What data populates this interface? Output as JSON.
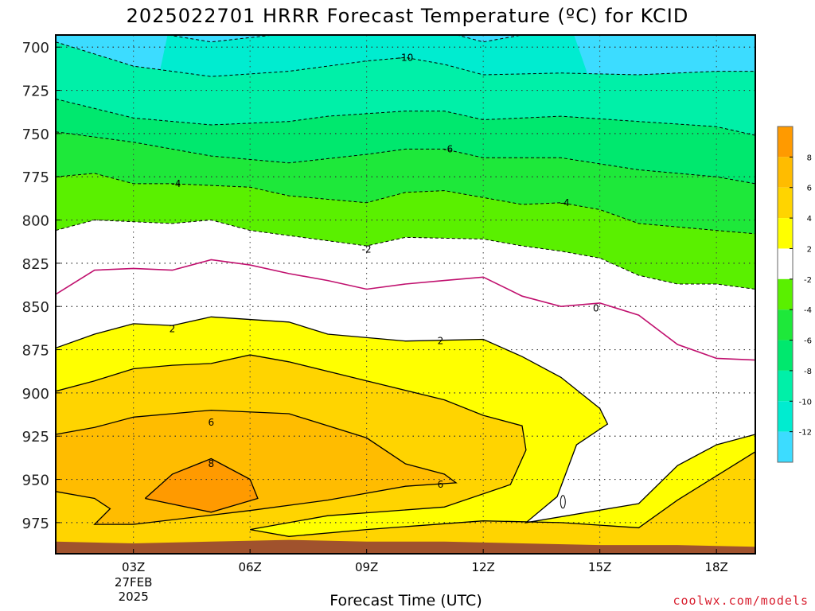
{
  "title": "2025022701 HRRR Forecast Temperature (ºC) for KCID",
  "xlabel": "Forecast Time (UTC)",
  "credit": "coolwx.com/models",
  "chart_data": {
    "type": "contour",
    "title": "2025022701 HRRR Forecast Temperature (ºC) for KCID",
    "xlabel": "Forecast Time (UTC)",
    "ylabel": "",
    "x_ticks": [
      "03Z",
      "06Z",
      "09Z",
      "12Z",
      "15Z",
      "18Z"
    ],
    "x_tick_sublabels": [
      "27FEB",
      "2025"
    ],
    "xlim": [
      1,
      19
    ],
    "y_ticks": [
      700,
      725,
      750,
      775,
      800,
      825,
      850,
      875,
      900,
      925,
      950,
      975
    ],
    "ylim": [
      993,
      693
    ],
    "y_inverted": true,
    "grid": true,
    "colorbar_labels": [
      -12,
      -10,
      -8,
      -6,
      -4,
      -2,
      2,
      4,
      6,
      8
    ],
    "colorbar_colors": [
      "#3cdcff",
      "#00ecd0",
      "#00f0a8",
      "#00e86e",
      "#1ee83a",
      "#5af000",
      "#ffffff",
      "#ffff00",
      "#ffd400",
      "#ffbc00",
      "#ff9a00"
    ],
    "contour_labels": [
      {
        "text": "-10",
        "x": 10.0,
        "y": 706
      },
      {
        "text": "-6",
        "x": 11.1,
        "y": 759
      },
      {
        "text": "-4",
        "x": 4.1,
        "y": 779
      },
      {
        "text": "-4",
        "x": 14.1,
        "y": 790
      },
      {
        "text": "-2",
        "x": 9.0,
        "y": 817
      },
      {
        "text": "0",
        "x": 14.9,
        "y": 851
      },
      {
        "text": "2",
        "x": 4.0,
        "y": 863
      },
      {
        "text": "2",
        "x": 10.9,
        "y": 870
      },
      {
        "text": "6",
        "x": 5.0,
        "y": 917
      },
      {
        "text": "8",
        "x": 5.0,
        "y": 941
      },
      {
        "text": "6",
        "x": 10.9,
        "y": 953
      }
    ],
    "isotherm_profiles": [
      {
        "value": -12,
        "points": [
          [
            3.9,
            693
          ],
          [
            5.0,
            697
          ],
          [
            7.0,
            692
          ],
          [
            9.0,
            691
          ],
          [
            11.0,
            691
          ],
          [
            12.0,
            697
          ],
          [
            13.0,
            693
          ],
          [
            14.3,
            693
          ]
        ]
      },
      {
        "value": -10,
        "points": [
          [
            1.0,
            697
          ],
          [
            3.0,
            711
          ],
          [
            5.0,
            717
          ],
          [
            7.0,
            714
          ],
          [
            9.0,
            708
          ],
          [
            10.0,
            706
          ],
          [
            11.0,
            710
          ],
          [
            12.0,
            716
          ],
          [
            14.0,
            715
          ],
          [
            16.0,
            716
          ],
          [
            18.0,
            714
          ],
          [
            19.0,
            714
          ]
        ]
      },
      {
        "value": -8,
        "points": [
          [
            1.0,
            730
          ],
          [
            3.0,
            741
          ],
          [
            5.0,
            745
          ],
          [
            7.0,
            743
          ],
          [
            8.0,
            740
          ],
          [
            10.0,
            737
          ],
          [
            11.0,
            737
          ],
          [
            12.0,
            742
          ],
          [
            14.0,
            740
          ],
          [
            16.0,
            743
          ],
          [
            18.0,
            746
          ],
          [
            19.0,
            751
          ]
        ]
      },
      {
        "value": -6,
        "points": [
          [
            1.0,
            749
          ],
          [
            3.0,
            755
          ],
          [
            5.0,
            763
          ],
          [
            7.0,
            767
          ],
          [
            9.0,
            762
          ],
          [
            10.0,
            759
          ],
          [
            11.0,
            759
          ],
          [
            12.0,
            764
          ],
          [
            14.0,
            764
          ],
          [
            16.0,
            771
          ],
          [
            18.0,
            775
          ],
          [
            19.0,
            779
          ]
        ]
      },
      {
        "value": -4,
        "points": [
          [
            1.0,
            775
          ],
          [
            2.0,
            773
          ],
          [
            3.0,
            779
          ],
          [
            4.0,
            779
          ],
          [
            6.0,
            781
          ],
          [
            7.0,
            786
          ],
          [
            8.0,
            788
          ],
          [
            9.0,
            790
          ],
          [
            10.0,
            784
          ],
          [
            11.0,
            783
          ],
          [
            12.0,
            787
          ],
          [
            13.0,
            791
          ],
          [
            14.0,
            790
          ],
          [
            15.0,
            794
          ],
          [
            16.0,
            802
          ],
          [
            18.0,
            806
          ],
          [
            19.0,
            808
          ]
        ]
      },
      {
        "value": -2,
        "points": [
          [
            1.0,
            806
          ],
          [
            2.0,
            800
          ],
          [
            4.0,
            802
          ],
          [
            5.0,
            800
          ],
          [
            6.0,
            806
          ],
          [
            7.0,
            809
          ],
          [
            9.0,
            815
          ],
          [
            10.0,
            810
          ],
          [
            12.0,
            811
          ],
          [
            13.0,
            815
          ],
          [
            14.0,
            818
          ],
          [
            15.0,
            822
          ],
          [
            16.0,
            832
          ],
          [
            17.0,
            837
          ],
          [
            18.0,
            837
          ],
          [
            19.0,
            840
          ]
        ]
      },
      {
        "value": 0,
        "points": [
          [
            1.0,
            843
          ],
          [
            2.0,
            829
          ],
          [
            3.0,
            828
          ],
          [
            4.0,
            829
          ],
          [
            5.0,
            823
          ],
          [
            6.0,
            826
          ],
          [
            7.0,
            831
          ],
          [
            8.0,
            835
          ],
          [
            9.0,
            840
          ],
          [
            10.0,
            837
          ],
          [
            11.0,
            835
          ],
          [
            12.0,
            833
          ],
          [
            13.0,
            844
          ],
          [
            14.0,
            850
          ],
          [
            15.0,
            848
          ],
          [
            16.0,
            855
          ],
          [
            17.0,
            872
          ],
          [
            18.0,
            880
          ],
          [
            19.0,
            881
          ]
        ]
      },
      {
        "value": 2,
        "points": [
          [
            1.0,
            874
          ],
          [
            2.0,
            866
          ],
          [
            3.0,
            860
          ],
          [
            4.0,
            861
          ],
          [
            5.0,
            856
          ],
          [
            7.0,
            859
          ],
          [
            8.0,
            866
          ],
          [
            10.0,
            870
          ],
          [
            12.0,
            869
          ],
          [
            13.0,
            879
          ],
          [
            14.0,
            891
          ],
          [
            15.0,
            909
          ],
          [
            15.2,
            918
          ],
          [
            14.4,
            930
          ],
          [
            13.9,
            960
          ],
          [
            13.1,
            975
          ],
          [
            16.0,
            964
          ],
          [
            17.0,
            942
          ],
          [
            18.0,
            930
          ],
          [
            19.0,
            924
          ]
        ]
      },
      {
        "value": 4,
        "points": [
          [
            1.0,
            899
          ],
          [
            2.0,
            893
          ],
          [
            3.0,
            886
          ],
          [
            4.0,
            884
          ],
          [
            5.0,
            883
          ],
          [
            6.0,
            878
          ],
          [
            7.0,
            882
          ],
          [
            9.0,
            893
          ],
          [
            11.0,
            904
          ],
          [
            12.0,
            913
          ],
          [
            13.0,
            919
          ],
          [
            13.1,
            933
          ],
          [
            12.7,
            953
          ],
          [
            11.0,
            966
          ],
          [
            8.0,
            971
          ],
          [
            6.0,
            979
          ],
          [
            7.0,
            983
          ],
          [
            9.0,
            979
          ],
          [
            12.0,
            974
          ],
          [
            14.0,
            975
          ],
          [
            16.0,
            978
          ],
          [
            17.0,
            962
          ],
          [
            18.0,
            948
          ],
          [
            19.0,
            934
          ]
        ]
      },
      {
        "value": 6,
        "points": [
          [
            1.0,
            924
          ],
          [
            2.0,
            920
          ],
          [
            3.0,
            914
          ],
          [
            5.0,
            910
          ],
          [
            7.0,
            912
          ],
          [
            9.0,
            926
          ],
          [
            10.0,
            941
          ],
          [
            11.0,
            947
          ],
          [
            11.3,
            952
          ],
          [
            10.0,
            954
          ],
          [
            8.0,
            962
          ],
          [
            6.0,
            968
          ],
          [
            3.0,
            976
          ],
          [
            2.0,
            976
          ],
          [
            2.4,
            967
          ],
          [
            2.0,
            961
          ],
          [
            1.0,
            957
          ]
        ]
      },
      {
        "value": 8,
        "points": [
          [
            3.3,
            961
          ],
          [
            4.0,
            947
          ],
          [
            5.0,
            938
          ],
          [
            6.0,
            950
          ],
          [
            6.2,
            961
          ],
          [
            5.0,
            969
          ],
          [
            3.3,
            961
          ]
        ]
      }
    ]
  }
}
